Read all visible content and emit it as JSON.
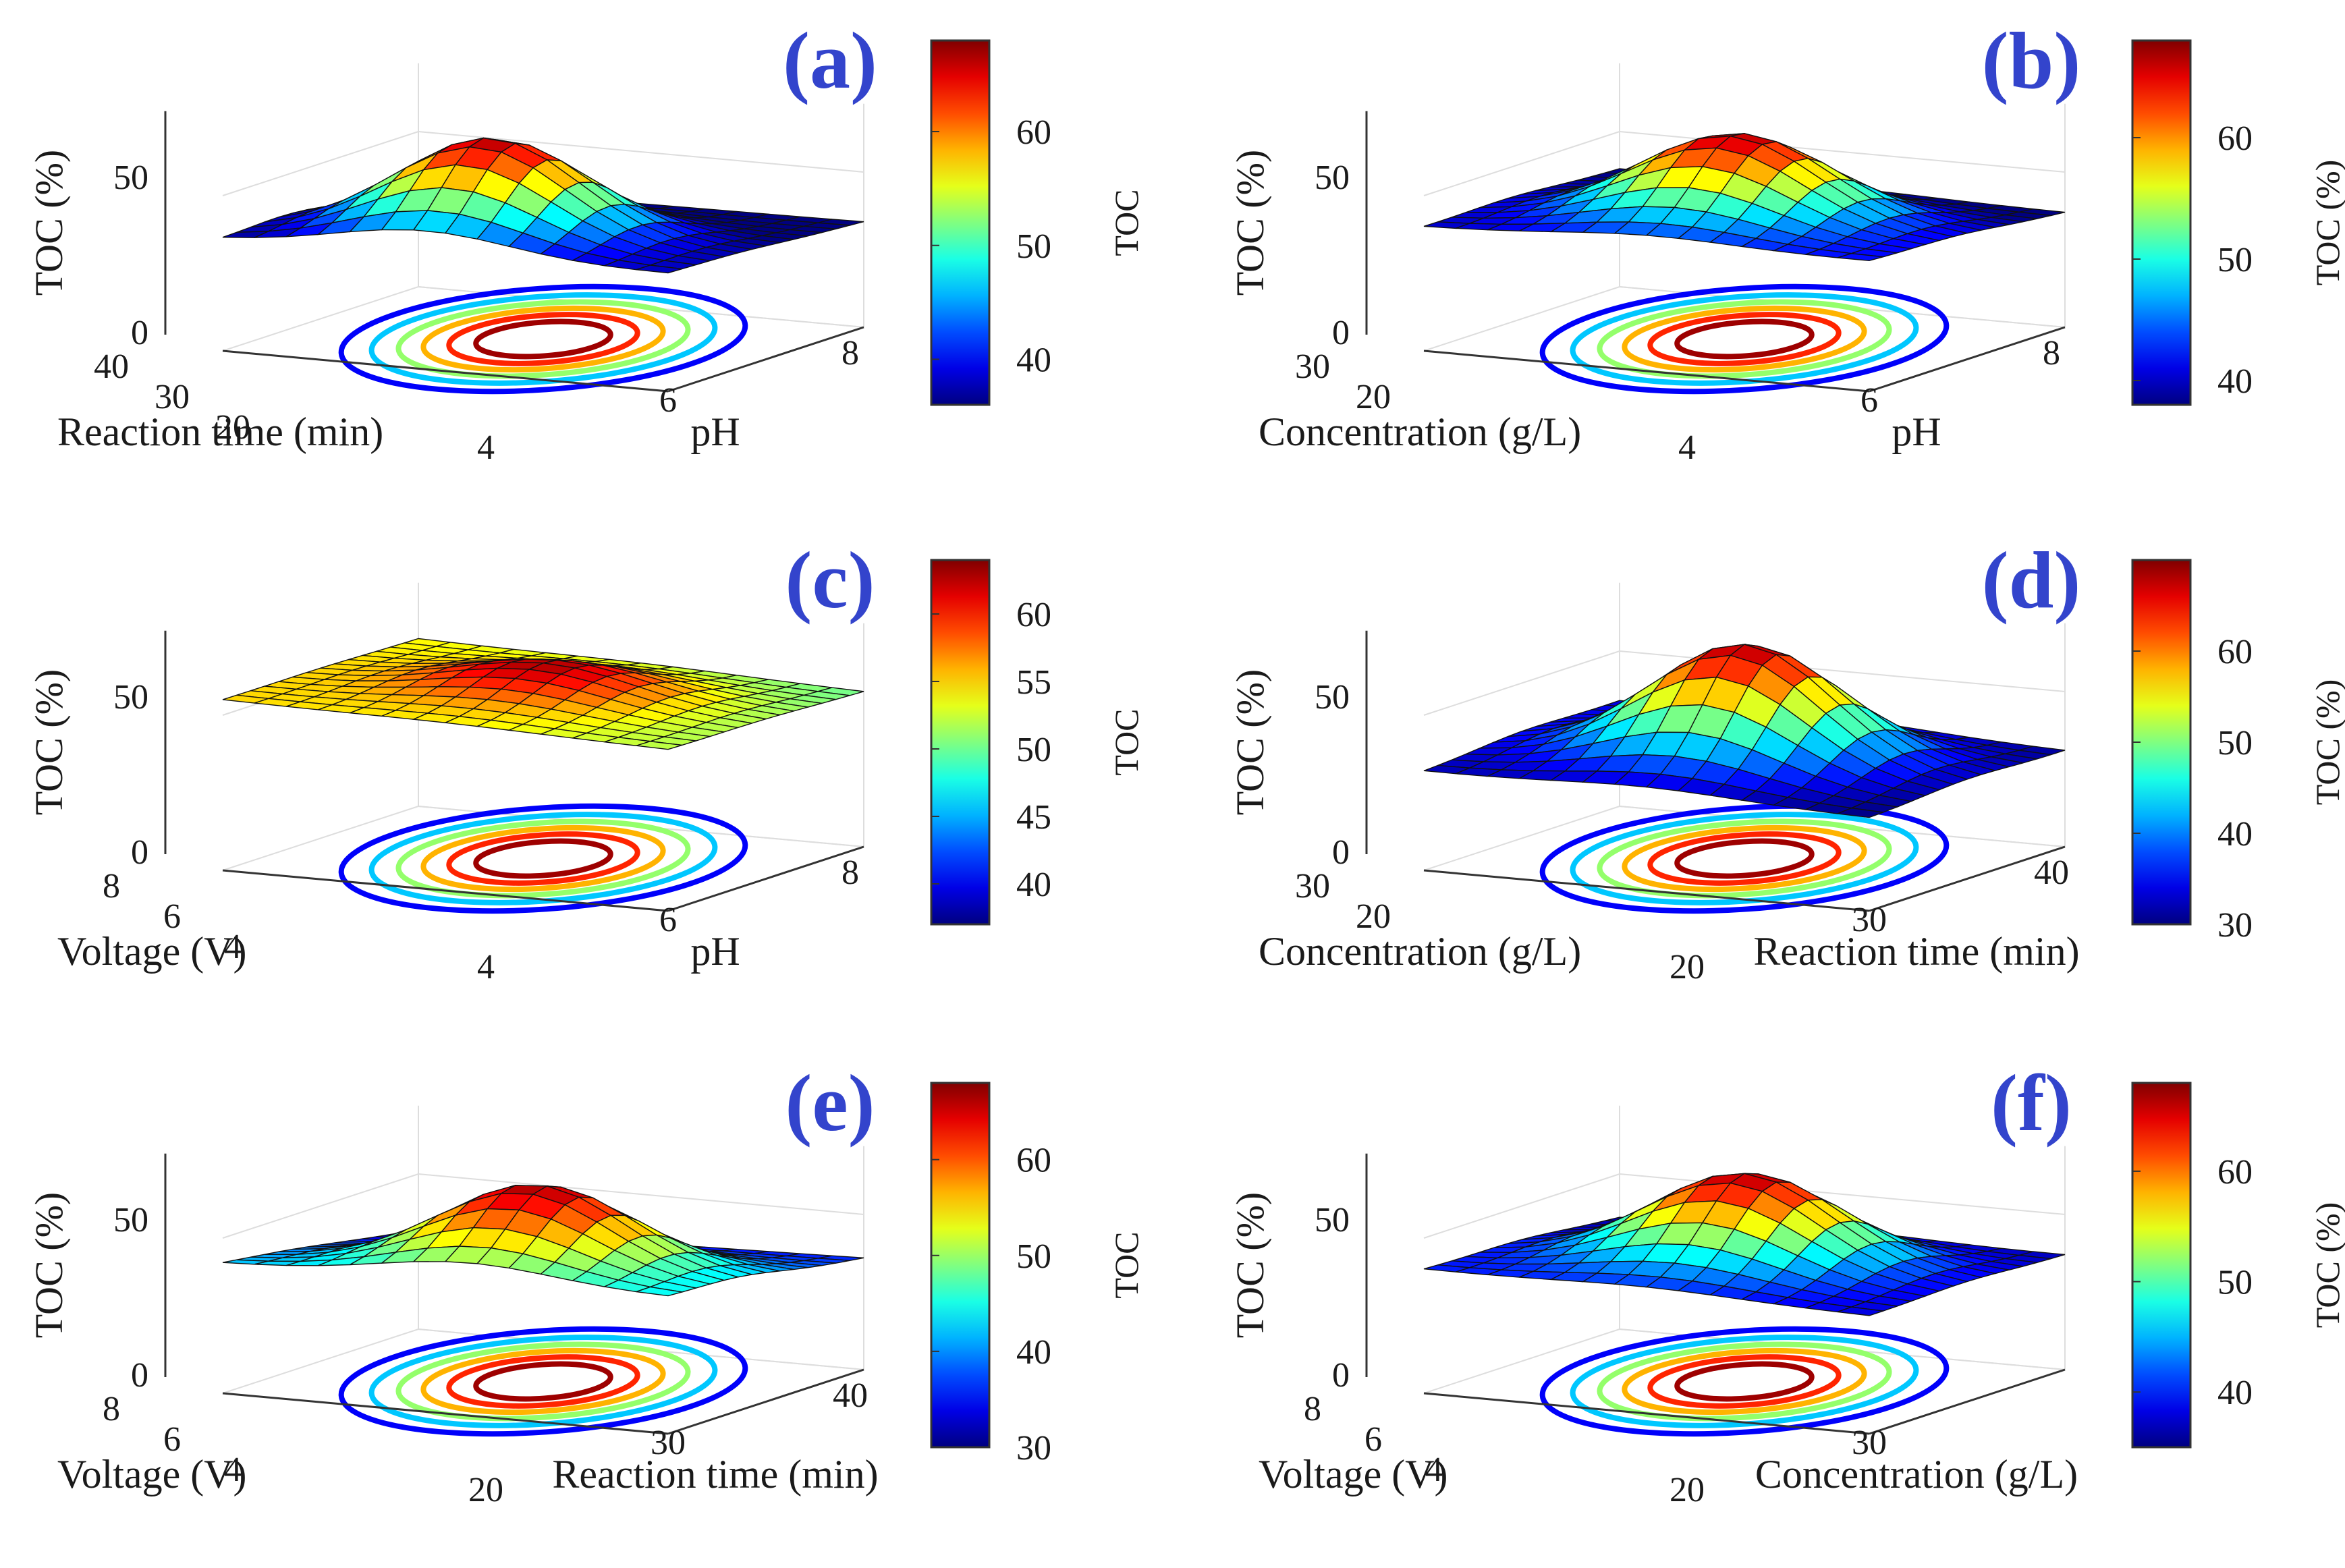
{
  "colors": {
    "panel_label": "#3344cc",
    "contour_outer": "#3b5fe0",
    "contour_mid": "#fff000",
    "contour_inner": "#ff2a10",
    "axis": "#333333",
    "grid": "#dddddd"
  },
  "chart_data": [
    {
      "type": "surface3d",
      "panel": "(a)",
      "zlabel": "TOC (%)",
      "zticks": [
        "0",
        "50"
      ],
      "xlabel": "Reaction time (min)",
      "xticks": [
        "40",
        "30",
        "20"
      ],
      "ylabel": "pH",
      "yticks": [
        "4",
        "6",
        "8"
      ],
      "colorbar_label": "TOC",
      "colorbar_ticks": [
        "60",
        "50",
        "40"
      ],
      "colorbar_range": [
        36,
        68
      ],
      "corners": [
        36,
        38,
        32,
        34
      ],
      "peak": {
        "u": 0.45,
        "v": 0.35,
        "value": 67
      }
    },
    {
      "type": "surface3d",
      "panel": "(b)",
      "zlabel": "TOC (%)",
      "zticks": [
        "0",
        "50"
      ],
      "xlabel": "Concentration (g/L)",
      "xticks": [
        "30",
        "20"
      ],
      "ylabel": "pH",
      "yticks": [
        "4",
        "6",
        "8"
      ],
      "colorbar_label": "TOC (%)",
      "colorbar_ticks": [
        "60",
        "50",
        "40"
      ],
      "colorbar_range": [
        38,
        68
      ],
      "corners": [
        40,
        42,
        38,
        37
      ],
      "peak": {
        "u": 0.5,
        "v": 0.45,
        "value": 67
      }
    },
    {
      "type": "surface3d",
      "panel": "(c)",
      "zlabel": "TOC (%)",
      "zticks": [
        "0",
        "50"
      ],
      "xlabel": "Voltage (V)",
      "xticks": [
        "8",
        "6",
        "4"
      ],
      "ylabel": "pH",
      "yticks": [
        "4",
        "6",
        "8"
      ],
      "colorbar_label": "TOC",
      "colorbar_ticks": [
        "60",
        "55",
        "50",
        "45",
        "40"
      ],
      "colorbar_range": [
        37,
        64
      ],
      "corners": [
        55,
        52,
        54,
        50
      ],
      "peak": {
        "u": 0.5,
        "v": 0.5,
        "value": 63
      }
    },
    {
      "type": "surface3d",
      "panel": "(d)",
      "zlabel": "TOC (%)",
      "zticks": [
        "0",
        "50"
      ],
      "xlabel": "Concentration (g/L)",
      "xticks": [
        "30",
        "20"
      ],
      "ylabel": "Reaction time (min)",
      "yticks": [
        "20",
        "30",
        "40"
      ],
      "colorbar_label": "TOC (%)",
      "colorbar_ticks": [
        "60",
        "50",
        "40",
        "30"
      ],
      "colorbar_range": [
        30,
        70
      ],
      "corners": [
        32,
        30,
        34,
        31
      ],
      "peak": {
        "u": 0.5,
        "v": 0.5,
        "value": 69
      }
    },
    {
      "type": "surface3d",
      "panel": "(e)",
      "zlabel": "TOC (%)",
      "zticks": [
        "0",
        "50"
      ],
      "xlabel": "Voltage (V)",
      "xticks": [
        "8",
        "6",
        "4"
      ],
      "ylabel": "Reaction time (min)",
      "yticks": [
        "20",
        "30",
        "40"
      ],
      "colorbar_label": "TOC",
      "colorbar_ticks": [
        "60",
        "50",
        "40",
        "30"
      ],
      "colorbar_range": [
        30,
        68
      ],
      "corners": [
        42,
        44,
        32,
        36
      ],
      "peak": {
        "u": 0.55,
        "v": 0.35,
        "value": 67
      }
    },
    {
      "type": "surface3d",
      "panel": "(f)",
      "zlabel": "TOC (%)",
      "zticks": [
        "0",
        "50"
      ],
      "xlabel": "Voltage (V)",
      "xticks": [
        "8",
        "6",
        "4"
      ],
      "ylabel": "Concentration (g/L)",
      "yticks": [
        "20",
        "30"
      ],
      "colorbar_label": "TOC (%)",
      "colorbar_ticks": [
        "60",
        "50",
        "40"
      ],
      "colorbar_range": [
        35,
        68
      ],
      "corners": [
        40,
        38,
        36,
        37
      ],
      "peak": {
        "u": 0.5,
        "v": 0.5,
        "value": 67
      }
    }
  ]
}
